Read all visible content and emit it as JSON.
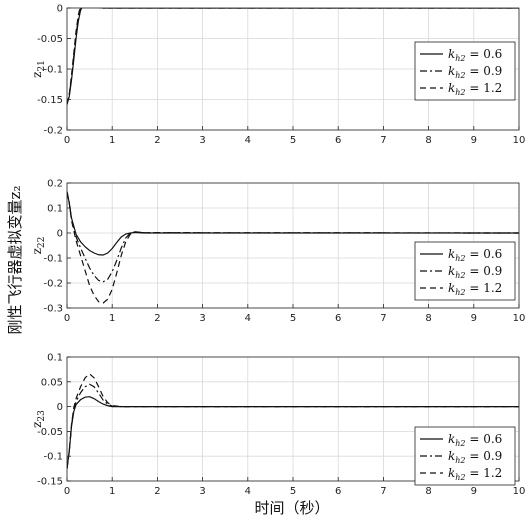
{
  "figure": {
    "ylabel": "刚性飞行器虚拟变量z₂",
    "xlabel": "时间（秒）"
  },
  "chart_data": [
    {
      "type": "line",
      "ylabel": "z21",
      "xlim": [
        0,
        10
      ],
      "ylim": [
        -0.2,
        0
      ],
      "xticks": [
        0,
        1,
        2,
        3,
        4,
        5,
        6,
        7,
        8,
        9,
        10
      ],
      "yticks": [
        -0.2,
        -0.15,
        -0.1,
        -0.05,
        0
      ],
      "ytick_labels": [
        "-0.2",
        "-0.15",
        "-0.1",
        "-0.05",
        "0"
      ],
      "legend_position": "right-middle",
      "grid": true,
      "series": [
        {
          "name": "k_h2 = 0.6",
          "dash": "solid",
          "x": [
            0,
            0.05,
            0.1,
            0.15,
            0.2,
            0.25,
            0.3,
            0.35,
            0.4,
            0.5,
            0.6,
            0.7,
            0.8,
            1.0,
            1.5,
            10
          ],
          "y": [
            -0.158,
            -0.145,
            -0.118,
            -0.085,
            -0.05,
            -0.022,
            -0.004,
            0.004,
            0.007,
            0.006,
            0.003,
            0.001,
            0.0,
            0.0,
            0.0,
            0.0
          ]
        },
        {
          "name": "k_h2 = 0.9",
          "dash": "dashdot",
          "x": [
            0,
            0.05,
            0.1,
            0.15,
            0.2,
            0.25,
            0.3,
            0.35,
            0.4,
            0.5,
            0.6,
            0.7,
            0.8,
            1.0,
            1.5,
            10
          ],
          "y": [
            -0.158,
            -0.143,
            -0.114,
            -0.079,
            -0.044,
            -0.017,
            0.0,
            0.007,
            0.009,
            0.007,
            0.003,
            0.001,
            0.0,
            0.0,
            0.0,
            0.0
          ]
        },
        {
          "name": "k_h2 = 1.2",
          "dash": "dashed",
          "x": [
            0,
            0.05,
            0.1,
            0.15,
            0.2,
            0.25,
            0.3,
            0.35,
            0.4,
            0.5,
            0.6,
            0.7,
            0.8,
            1.0,
            1.5,
            10
          ],
          "y": [
            -0.158,
            -0.141,
            -0.11,
            -0.074,
            -0.038,
            -0.012,
            0.004,
            0.009,
            0.011,
            0.008,
            0.004,
            0.001,
            0.0,
            0.0,
            0.0,
            0.0
          ]
        }
      ]
    },
    {
      "type": "line",
      "ylabel": "z22",
      "xlim": [
        0,
        10
      ],
      "ylim": [
        -0.3,
        0.2
      ],
      "xticks": [
        0,
        1,
        2,
        3,
        4,
        5,
        6,
        7,
        8,
        9,
        10
      ],
      "yticks": [
        -0.3,
        -0.2,
        -0.1,
        0,
        0.1,
        0.2
      ],
      "ytick_labels": [
        "-0.3",
        "-0.2",
        "-0.1",
        "0",
        "0.1",
        "0.2"
      ],
      "legend_position": "right-middle",
      "grid": true,
      "series": [
        {
          "name": "k_h2 = 0.6",
          "dash": "solid",
          "x": [
            0,
            0.05,
            0.1,
            0.2,
            0.3,
            0.4,
            0.5,
            0.6,
            0.7,
            0.8,
            0.9,
            1.0,
            1.1,
            1.2,
            1.3,
            1.4,
            1.5,
            1.7,
            10
          ],
          "y": [
            0.165,
            0.12,
            0.06,
            -0.005,
            -0.035,
            -0.055,
            -0.07,
            -0.08,
            -0.087,
            -0.088,
            -0.08,
            -0.062,
            -0.038,
            -0.016,
            -0.004,
            0.0,
            0.002,
            0.0,
            0.0
          ]
        },
        {
          "name": "k_h2 = 0.9",
          "dash": "dashdot",
          "x": [
            0,
            0.05,
            0.1,
            0.2,
            0.3,
            0.4,
            0.5,
            0.6,
            0.7,
            0.8,
            0.9,
            1.0,
            1.1,
            1.2,
            1.3,
            1.4,
            1.5,
            1.7,
            10
          ],
          "y": [
            0.165,
            0.12,
            0.055,
            -0.015,
            -0.06,
            -0.1,
            -0.14,
            -0.17,
            -0.19,
            -0.195,
            -0.185,
            -0.155,
            -0.11,
            -0.06,
            -0.02,
            0.0,
            0.004,
            0.001,
            0.0
          ]
        },
        {
          "name": "k_h2 = 1.2",
          "dash": "dashed",
          "x": [
            0,
            0.05,
            0.1,
            0.2,
            0.3,
            0.4,
            0.5,
            0.6,
            0.7,
            0.8,
            0.9,
            1.0,
            1.1,
            1.2,
            1.3,
            1.4,
            1.5,
            1.7,
            10
          ],
          "y": [
            0.165,
            0.12,
            0.05,
            -0.03,
            -0.09,
            -0.15,
            -0.21,
            -0.25,
            -0.275,
            -0.28,
            -0.265,
            -0.225,
            -0.16,
            -0.09,
            -0.035,
            -0.005,
            0.005,
            0.001,
            0.0
          ]
        }
      ]
    },
    {
      "type": "line",
      "ylabel": "z23",
      "xlim": [
        0,
        10
      ],
      "ylim": [
        -0.15,
        0.1
      ],
      "xticks": [
        0,
        1,
        2,
        3,
        4,
        5,
        6,
        7,
        8,
        9,
        10
      ],
      "yticks": [
        -0.15,
        -0.1,
        -0.05,
        0,
        0.05,
        0.1
      ],
      "ytick_labels": [
        "-0.15",
        "-0.1",
        "-0.05",
        "0",
        "0.05",
        "0.1"
      ],
      "legend_position": "bottom-right",
      "grid": true,
      "series": [
        {
          "name": "k_h2 = 0.6",
          "dash": "solid",
          "x": [
            0,
            0.05,
            0.1,
            0.15,
            0.2,
            0.3,
            0.4,
            0.5,
            0.6,
            0.7,
            0.8,
            0.9,
            1.0,
            1.2,
            10
          ],
          "y": [
            -0.125,
            -0.09,
            -0.04,
            -0.01,
            0.004,
            0.014,
            0.019,
            0.02,
            0.016,
            0.01,
            0.005,
            0.002,
            0.0,
            0.0,
            0.0
          ]
        },
        {
          "name": "k_h2 = 0.9",
          "dash": "dashdot",
          "x": [
            0,
            0.05,
            0.1,
            0.15,
            0.2,
            0.3,
            0.4,
            0.5,
            0.6,
            0.7,
            0.8,
            0.9,
            1.0,
            1.2,
            10
          ],
          "y": [
            -0.125,
            -0.09,
            -0.038,
            -0.006,
            0.01,
            0.028,
            0.04,
            0.045,
            0.04,
            0.027,
            0.013,
            0.005,
            0.001,
            0.0,
            0.0
          ]
        },
        {
          "name": "k_h2 = 1.2",
          "dash": "dashed",
          "x": [
            0,
            0.05,
            0.1,
            0.15,
            0.2,
            0.3,
            0.4,
            0.5,
            0.6,
            0.7,
            0.8,
            0.9,
            1.0,
            1.2,
            10
          ],
          "y": [
            -0.125,
            -0.09,
            -0.036,
            -0.002,
            0.016,
            0.04,
            0.058,
            0.066,
            0.058,
            0.04,
            0.02,
            0.008,
            0.002,
            0.0,
            0.0
          ]
        }
      ]
    }
  ]
}
